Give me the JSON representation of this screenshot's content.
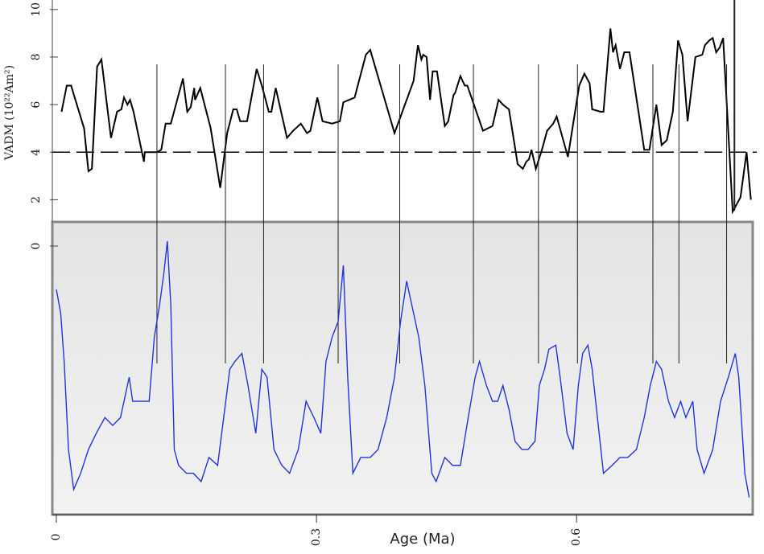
{
  "chart_data": [
    {
      "type": "line",
      "ylabel": "VADM (10²²Am²)",
      "color": "#000000",
      "reference_line": 4,
      "correlation_lines": [
        0.116,
        0.195,
        0.239,
        0.325,
        0.396,
        0.481,
        0.556,
        0.601,
        0.688,
        0.718,
        0.773,
        0.782
      ],
      "xlim": [
        0,
        0.81
      ],
      "ylim": [
        1.1,
        10.4
      ],
      "yticks": [
        2,
        4,
        6,
        8,
        10
      ],
      "x": [
        0.006,
        0.012,
        0.017,
        0.032,
        0.037,
        0.041,
        0.047,
        0.052,
        0.063,
        0.07,
        0.075,
        0.078,
        0.082,
        0.085,
        0.089,
        0.101,
        0.102,
        0.116,
        0.121,
        0.126,
        0.132,
        0.146,
        0.151,
        0.155,
        0.159,
        0.16,
        0.166,
        0.178,
        0.189,
        0.197,
        0.204,
        0.208,
        0.212,
        0.22,
        0.224,
        0.231,
        0.237,
        0.245,
        0.248,
        0.253,
        0.266,
        0.273,
        0.282,
        0.289,
        0.293,
        0.301,
        0.307,
        0.318,
        0.327,
        0.331,
        0.344,
        0.357,
        0.362,
        0.39,
        0.399,
        0.409,
        0.412,
        0.417,
        0.421,
        0.423,
        0.427,
        0.431,
        0.434,
        0.439,
        0.448,
        0.452,
        0.458,
        0.46,
        0.466,
        0.471,
        0.474,
        0.492,
        0.503,
        0.51,
        0.515,
        0.522,
        0.532,
        0.538,
        0.542,
        0.545,
        0.548,
        0.553,
        0.56,
        0.566,
        0.573,
        0.577,
        0.59,
        0.603,
        0.609,
        0.615,
        0.618,
        0.628,
        0.631,
        0.639,
        0.642,
        0.645,
        0.65,
        0.655,
        0.661,
        0.678,
        0.684,
        0.692,
        0.698,
        0.704,
        0.711,
        0.717,
        0.722,
        0.728,
        0.737,
        0.745,
        0.748,
        0.753,
        0.757,
        0.761,
        0.765,
        0.769,
        0.78,
        0.789,
        0.796,
        0.801
      ],
      "values": [
        5.7,
        6.8,
        6.8,
        5.0,
        3.2,
        3.3,
        7.6,
        7.9,
        4.6,
        5.7,
        5.8,
        6.3,
        6.0,
        6.2,
        5.7,
        3.6,
        4.0,
        4.0,
        4.1,
        5.2,
        5.2,
        7.1,
        5.7,
        5.9,
        6.7,
        6.2,
        6.7,
        5.0,
        2.5,
        4.8,
        5.8,
        5.8,
        5.3,
        5.3,
        6.1,
        7.5,
        6.8,
        5.7,
        5.7,
        6.7,
        4.6,
        4.9,
        5.2,
        4.8,
        4.9,
        6.3,
        5.3,
        5.2,
        5.3,
        6.1,
        6.3,
        8.1,
        8.3,
        4.8,
        5.7,
        6.7,
        7.0,
        8.5,
        7.9,
        8.1,
        8.0,
        6.2,
        7.4,
        7.4,
        5.1,
        5.3,
        6.4,
        6.5,
        7.2,
        6.8,
        6.8,
        4.9,
        5.1,
        6.2,
        6.0,
        5.8,
        3.5,
        3.3,
        3.6,
        3.7,
        4.1,
        3.3,
        4.1,
        4.9,
        5.2,
        5.5,
        3.8,
        6.8,
        7.3,
        6.9,
        5.8,
        5.7,
        5.7,
        9.2,
        8.2,
        8.5,
        7.5,
        8.2,
        8.2,
        4.1,
        4.1,
        6.0,
        4.3,
        4.5,
        5.7,
        8.7,
        8.1,
        5.3,
        8.0,
        8.1,
        8.5,
        8.7,
        8.8,
        8.2,
        8.4,
        8.8,
        1.5,
        2.1,
        4.0,
        2.0
      ]
    },
    {
      "type": "line",
      "xlabel": "Age (Ma)",
      "color": "#2233dd",
      "xlim": [
        0,
        0.81
      ],
      "xticks": [
        0,
        0.3,
        0.6
      ],
      "ylim": [
        -7.8,
        0.7
      ],
      "yticks": [
        0
      ],
      "x": [
        0,
        0.005,
        0.009,
        0.014,
        0.02,
        0.028,
        0.037,
        0.046,
        0.056,
        0.065,
        0.074,
        0.084,
        0.088,
        0.097,
        0.107,
        0.113,
        0.119,
        0.124,
        0.128,
        0.132,
        0.136,
        0.141,
        0.15,
        0.158,
        0.167,
        0.176,
        0.186,
        0.193,
        0.2,
        0.206,
        0.214,
        0.221,
        0.23,
        0.237,
        0.243,
        0.251,
        0.26,
        0.269,
        0.279,
        0.288,
        0.297,
        0.305,
        0.311,
        0.318,
        0.325,
        0.331,
        0.336,
        0.342,
        0.351,
        0.362,
        0.371,
        0.381,
        0.39,
        0.397,
        0.404,
        0.41,
        0.418,
        0.425,
        0.433,
        0.438,
        0.448,
        0.457,
        0.466,
        0.475,
        0.483,
        0.488,
        0.496,
        0.503,
        0.509,
        0.515,
        0.522,
        0.529,
        0.537,
        0.544,
        0.552,
        0.557,
        0.563,
        0.568,
        0.576,
        0.581,
        0.589,
        0.596,
        0.602,
        0.607,
        0.613,
        0.618,
        0.624,
        0.631,
        0.641,
        0.65,
        0.659,
        0.669,
        0.678,
        0.685,
        0.692,
        0.698,
        0.706,
        0.713,
        0.72,
        0.726,
        0.734,
        0.739,
        0.747,
        0.757,
        0.766,
        0.775,
        0.783,
        0.787,
        0.794,
        0.799
      ],
      "values": [
        -1.26,
        -1.95,
        -3.35,
        -5.91,
        -7.07,
        -6.6,
        -5.91,
        -5.44,
        -4.98,
        -5.21,
        -4.98,
        -3.81,
        -4.51,
        -4.51,
        -4.51,
        -2.65,
        -1.72,
        -0.79,
        0.14,
        -1.72,
        -5.91,
        -6.37,
        -6.6,
        -6.6,
        -6.84,
        -6.14,
        -6.37,
        -4.98,
        -3.58,
        -3.35,
        -3.12,
        -4.05,
        -5.44,
        -3.58,
        -3.81,
        -5.91,
        -6.37,
        -6.6,
        -5.91,
        -4.51,
        -4.98,
        -5.44,
        -3.35,
        -2.65,
        -2.19,
        -0.56,
        -3.81,
        -6.6,
        -6.14,
        -6.14,
        -5.91,
        -4.98,
        -3.81,
        -2.19,
        -1.02,
        -1.72,
        -2.65,
        -4.05,
        -6.6,
        -6.84,
        -6.14,
        -6.37,
        -6.37,
        -4.98,
        -3.81,
        -3.35,
        -4.05,
        -4.51,
        -4.51,
        -4.05,
        -4.74,
        -5.67,
        -5.91,
        -5.91,
        -5.67,
        -4.05,
        -3.58,
        -3.0,
        -2.88,
        -3.81,
        -5.44,
        -5.91,
        -4.05,
        -3.12,
        -2.88,
        -3.58,
        -4.98,
        -6.6,
        -6.37,
        -6.14,
        -6.14,
        -5.91,
        -4.98,
        -4.05,
        -3.35,
        -3.58,
        -4.51,
        -4.98,
        -4.51,
        -4.98,
        -4.51,
        -5.91,
        -6.6,
        -5.91,
        -4.51,
        -3.81,
        -3.12,
        -3.81,
        -6.6,
        -7.3
      ]
    }
  ]
}
